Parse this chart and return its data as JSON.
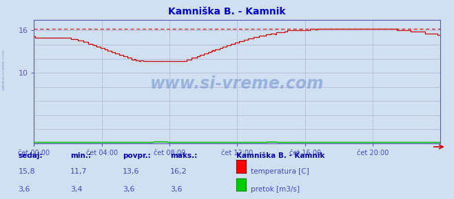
{
  "title": "Kamniška B. - Kamnik",
  "bg_color": "#d0e0f0",
  "plot_bg_color": "#d0e0f0",
  "grid_color": "#b8b8d8",
  "x_label_color": "#4444cc",
  "y_label_color": "#5555bb",
  "title_color": "#0000cc",
  "x_ticks": [
    0,
    4,
    8,
    12,
    16,
    20
  ],
  "x_tick_labels": [
    "čet 00:00",
    "čet 04:00",
    "čet 08:00",
    "čet 12:00",
    "čet 16:00",
    "čet 20:00"
  ],
  "y_ticks": [
    10,
    16
  ],
  "ylim": [
    0,
    17.5
  ],
  "xlim": [
    0,
    24
  ],
  "temp_color": "#cc0000",
  "flow_color": "#00bb00",
  "max_line_color": "#cc0000",
  "axis_color": "#5555bb",
  "watermark": "www.si-vreme.com",
  "watermark_color": "#6688cc",
  "sedaj_label": "sedaj:",
  "min_label": "min.:",
  "povpr_label": "povpr.:",
  "maks_label": "maks.:",
  "station_label": "Kamniška B. - Kamnik",
  "temp_legend": "temperatura [C]",
  "flow_legend": "pretok [m3/s]",
  "sedaj_temp": "15,8",
  "min_temp": "11,7",
  "povpr_temp": "13,6",
  "maks_temp": "16,2",
  "sedaj_flow": "3,6",
  "min_flow": "3,4",
  "povpr_flow": "3,6",
  "maks_flow": "3,6",
  "max_temp_value": 16.2,
  "flow_display_value": 0.12
}
